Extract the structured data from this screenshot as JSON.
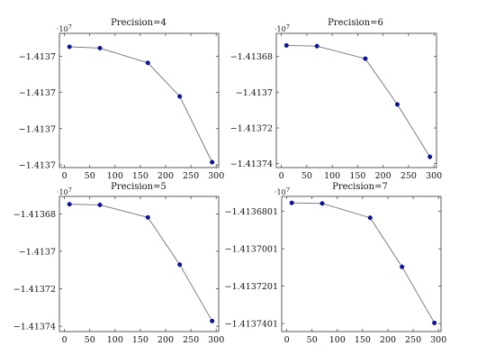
{
  "chart_data": [
    {
      "type": "line",
      "title": "Precision=4",
      "y_multiplier": "·10^7",
      "x": [
        10,
        70,
        165,
        228,
        292
      ],
      "y": [
        -1.41365,
        -1.413651,
        -1.413662,
        -1.413687,
        -1.413736
      ],
      "xlim": [
        -10,
        305
      ],
      "ylim": [
        -1.41374,
        -1.41364
      ],
      "x_ticks": [
        0,
        50,
        100,
        150,
        200,
        250,
        300
      ],
      "x_tick_labels": [
        "0",
        "50",
        "100",
        "150",
        "200",
        "250",
        "300"
      ],
      "y_ticks": [
        -1.413657,
        -1.413684,
        -1.413711,
        -1.413738
      ],
      "y_tick_labels": [
        "−1.4137",
        "−1.4137",
        "−1.4137",
        "−1.4137"
      ],
      "grid": false
    },
    {
      "type": "line",
      "title": "Precision=6",
      "y_multiplier": "·10^7",
      "x": [
        10,
        70,
        165,
        228,
        292
      ],
      "y": [
        -1.4136738,
        -1.4136742,
        -1.4136812,
        -1.4137068,
        -1.4137362
      ],
      "xlim": [
        -10,
        305
      ],
      "ylim": [
        -1.41374218,
        -1.41366702
      ],
      "x_ticks": [
        0,
        50,
        100,
        150,
        200,
        250,
        300
      ],
      "x_tick_labels": [
        "0",
        "50",
        "100",
        "150",
        "200",
        "250",
        "300"
      ],
      "y_ticks": [
        -1.41368,
        -1.4137,
        -1.41372,
        -1.41374
      ],
      "y_tick_labels": [
        "−1.41368",
        "−1.4137",
        "−1.41372",
        "−1.41374"
      ],
      "grid": false
    },
    {
      "type": "line",
      "title": "Precision=5",
      "y_multiplier": "·10^7",
      "x": [
        10,
        70,
        165,
        228,
        292
      ],
      "y": [
        -1.4136749,
        -1.4136752,
        -1.4136819,
        -1.4137071,
        -1.4137372
      ],
      "xlim": [
        -10,
        305
      ],
      "ylim": [
        -1.41374283,
        -1.4136707
      ],
      "x_ticks": [
        0,
        50,
        100,
        150,
        200,
        250,
        300
      ],
      "x_tick_labels": [
        "0",
        "50",
        "100",
        "150",
        "200",
        "250",
        "300"
      ],
      "y_ticks": [
        -1.41368,
        -1.4137,
        -1.41372,
        -1.41374
      ],
      "y_tick_labels": [
        "−1.41368",
        "−1.4137",
        "−1.41372",
        "−1.41374"
      ],
      "grid": false
    },
    {
      "type": "line",
      "title": "Precision=7",
      "y_multiplier": "·10^7",
      "x": [
        10,
        70,
        165,
        228,
        292
      ],
      "y": [
        -1.41367556,
        -1.41367589,
        -1.41368354,
        -1.41370979,
        -1.41373977
      ],
      "xlim": [
        -10,
        305
      ],
      "ylim": [
        -1.41374439,
        -1.41367211
      ],
      "x_ticks": [
        0,
        50,
        100,
        150,
        200,
        250,
        300
      ],
      "x_tick_labels": [
        "0",
        "50",
        "100",
        "150",
        "200",
        "250",
        "300"
      ],
      "y_ticks": [
        -1.4136801,
        -1.4137001,
        -1.4137201,
        -1.4137401
      ],
      "y_tick_labels": [
        "−1.4136801",
        "−1.4137001",
        "−1.4137201",
        "−1.4137401"
      ],
      "grid": false
    }
  ]
}
